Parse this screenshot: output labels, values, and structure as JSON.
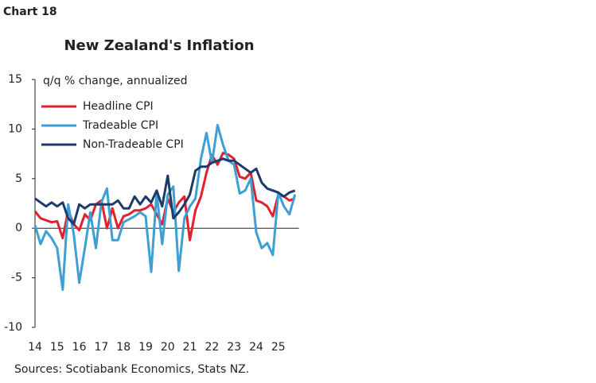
{
  "chart_label": "Chart 18",
  "chart_data": {
    "type": "line",
    "title": "New Zealand's Inflation",
    "y_label": "q/q % change, annualized",
    "note": "Sources: Scotiabank Economics, Stats NZ.",
    "categories": [
      "14",
      null,
      null,
      null,
      "15",
      null,
      null,
      null,
      "16",
      null,
      null,
      null,
      "17",
      null,
      null,
      null,
      "18",
      null,
      null,
      null,
      "19",
      null,
      null,
      null,
      "20",
      null,
      null,
      null,
      "21",
      null,
      null,
      null,
      "22",
      null,
      null,
      null,
      "23",
      null,
      null,
      null,
      "24",
      null,
      null,
      null,
      "25",
      null,
      null,
      null
    ],
    "ylim": [
      -10,
      15
    ],
    "yticks": [
      -10,
      -5,
      0,
      5,
      10,
      15
    ],
    "legend": "upper left",
    "series": [
      {
        "name": "Headline CPI",
        "color": "#e2202e",
        "values": [
          1.7,
          1.0,
          0.8,
          0.6,
          0.7,
          -1.0,
          1.8,
          0.4,
          -0.2,
          1.4,
          0.8,
          2.4,
          2.8,
          0.0,
          2.0,
          0.0,
          1.2,
          1.4,
          1.8,
          1.8,
          2.0,
          2.4,
          1.4,
          0.4,
          3.0,
          1.6,
          2.6,
          3.2,
          -1.2,
          1.8,
          3.2,
          5.6,
          7.4,
          6.4,
          7.6,
          7.4,
          7.0,
          5.2,
          5.0,
          5.6,
          2.8,
          2.6,
          2.2,
          1.2,
          3.4,
          3.2,
          2.8,
          3.0
        ]
      },
      {
        "name": "Tradeable CPI",
        "color": "#3d9fd3",
        "values": [
          0.3,
          -1.6,
          -0.3,
          -1.0,
          -2.0,
          -6.2,
          2.4,
          -0.6,
          -5.5,
          -2.0,
          1.6,
          -2.0,
          2.6,
          4.0,
          -1.2,
          -1.2,
          0.6,
          0.9,
          1.2,
          1.6,
          1.2,
          -4.4,
          3.6,
          -1.6,
          3.4,
          4.2,
          -4.3,
          1.0,
          2.2,
          3.0,
          7.0,
          9.6,
          6.6,
          10.4,
          8.4,
          6.8,
          6.4,
          3.5,
          3.8,
          5.0,
          -0.4,
          -2.0,
          -1.5,
          -2.7,
          3.6,
          2.2,
          1.4,
          3.4
        ]
      },
      {
        "name": "Non-Tradeable CPI",
        "color": "#1c3a6a",
        "values": [
          3.0,
          2.6,
          2.2,
          2.6,
          2.2,
          2.6,
          1.0,
          0.4,
          2.4,
          2.0,
          2.4,
          2.4,
          2.4,
          2.4,
          2.4,
          2.8,
          2.0,
          2.0,
          3.2,
          2.4,
          3.2,
          2.6,
          3.8,
          2.2,
          5.3,
          1.0,
          1.6,
          2.4,
          3.4,
          5.8,
          6.2,
          6.2,
          6.6,
          6.8,
          7.0,
          6.8,
          6.8,
          6.4,
          6.0,
          5.6,
          6.0,
          4.6,
          4.0,
          3.8,
          3.6,
          3.2,
          3.6,
          3.8
        ]
      }
    ]
  }
}
